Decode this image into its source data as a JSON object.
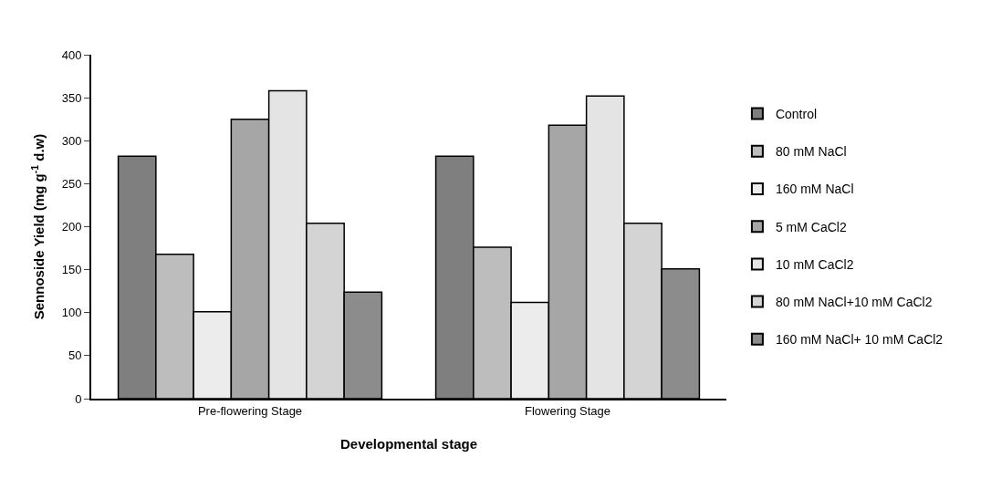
{
  "chart_data": {
    "type": "bar",
    "xlabel": "Developmental stage",
    "ylabel": "Sennoside Yield (mg g$^{-1}$ d.w)",
    "categories": [
      "Pre-flowering Stage",
      "Flowering Stage"
    ],
    "series": [
      {
        "name": "Control",
        "color": "#7f7f7f",
        "values": [
          282,
          282
        ]
      },
      {
        "name": "80 mM NaCl",
        "color": "#bdbdbd",
        "values": [
          168,
          176
        ]
      },
      {
        "name": "160 mM NaCl",
        "color": "#ececec",
        "values": [
          101,
          112
        ]
      },
      {
        "name": "5 mM CaCl2",
        "color": "#a6a6a6",
        "values": [
          325,
          318
        ]
      },
      {
        "name": "10 mM CaCl2",
        "color": "#e4e4e4",
        "values": [
          358,
          352
        ]
      },
      {
        "name": "80 mM NaCl+10 mM CaCl2",
        "color": "#d4d4d4",
        "values": [
          204,
          204
        ]
      },
      {
        "name": "160 mM NaCl+ 10 mM CaCl2",
        "color": "#8c8c8c",
        "values": [
          124,
          151
        ]
      }
    ],
    "ylim": [
      0,
      400
    ],
    "yticks": [
      0,
      50,
      100,
      150,
      200,
      250,
      300,
      350,
      400
    ],
    "legend": "right"
  }
}
